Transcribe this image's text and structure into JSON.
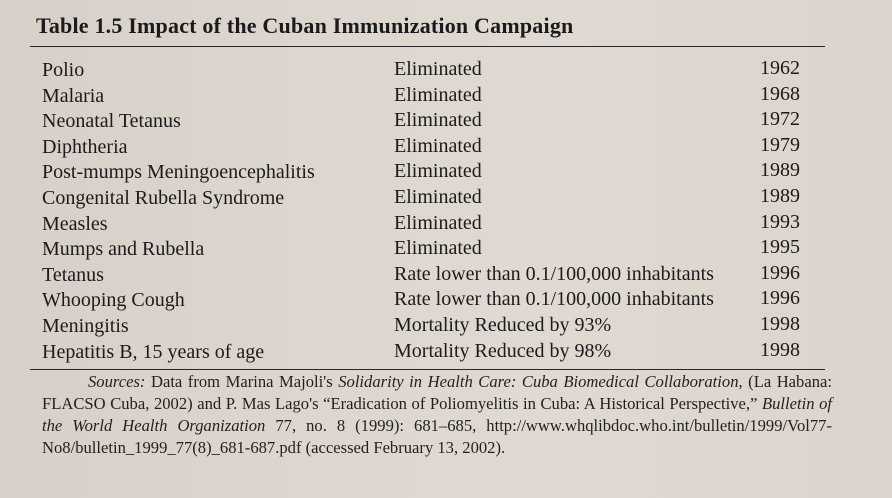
{
  "table": {
    "title": "Table 1.5 Impact of the Cuban Immunization Campaign",
    "rows": [
      {
        "disease": "Polio",
        "status": "Eliminated",
        "year": "1962"
      },
      {
        "disease": "Malaria",
        "status": "Eliminated",
        "year": "1968"
      },
      {
        "disease": "Neonatal Tetanus",
        "status": "Eliminated",
        "year": "1972"
      },
      {
        "disease": "Diphtheria",
        "status": "Eliminated",
        "year": "1979"
      },
      {
        "disease": "Post-mumps Meningoencephalitis",
        "status": "Eliminated",
        "year": "1989"
      },
      {
        "disease": "Congenital Rubella Syndrome",
        "status": "Eliminated",
        "year": "1989"
      },
      {
        "disease": "Measles",
        "status": "Eliminated",
        "year": "1993"
      },
      {
        "disease": "Mumps and Rubella",
        "status": "Eliminated",
        "year": "1995"
      },
      {
        "disease": "Tetanus",
        "status": "Rate lower than 0.1/100,000 inhabitants",
        "year": "1996"
      },
      {
        "disease": "Whooping Cough",
        "status": "Rate lower than 0.1/100,000 inhabitants",
        "year": "1996"
      },
      {
        "disease": "Meningitis",
        "status": "Mortality Reduced by 93%",
        "year": "1998"
      },
      {
        "disease": "Hepatitis B, 15 years of age",
        "status": "Mortality Reduced by 98%",
        "year": "1998"
      }
    ]
  },
  "sources": {
    "label": "Sources:",
    "part1": " Data from Marina Majoli's ",
    "title1": "Solidarity in Health Care: Cuba Biomedical Collaboration",
    "part2": ", (La Habana: FLACSO Cuba, 2002) and P. Mas Lago's “Eradication of Poliomyelitis in Cuba: A Historical Perspective,” ",
    "title2": "Bulletin of the World Health Organization",
    "part3": " 77, no. 8 (1999): 681–685, http://www.whqlibdoc.who.int/bulletin/1999/Vol77-No8/bulletin_1999_77(8)_681-687.pdf (accessed February 13, 2002)."
  }
}
